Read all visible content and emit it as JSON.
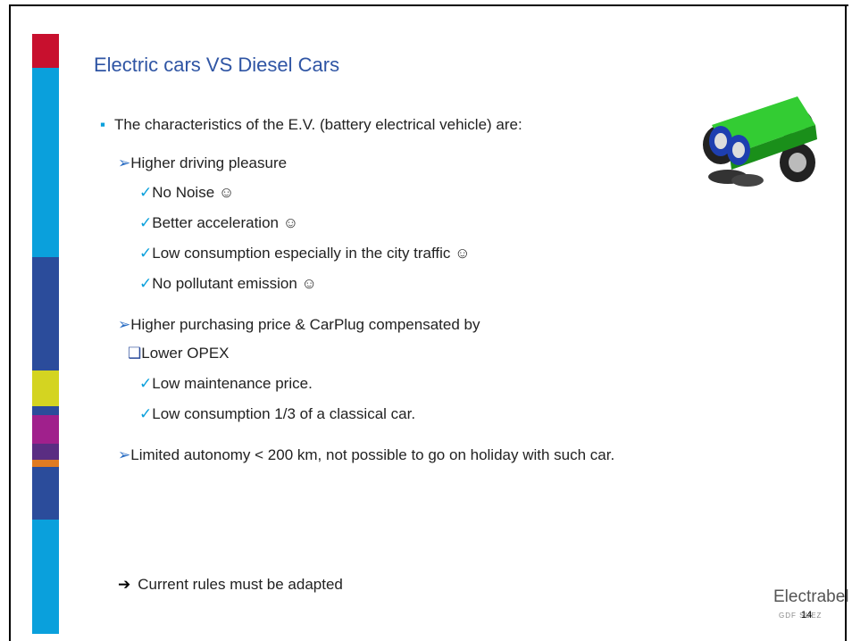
{
  "slide": {
    "title": "Electric cars VS Diesel Cars",
    "items": [
      {
        "marker": "▪",
        "text": "The characteristics of the E.V. (battery electrical vehicle) are:"
      },
      {
        "marker": "➢",
        "text": "Higher driving pleasure"
      },
      {
        "marker": "✓",
        "text": "No Noise ☺"
      },
      {
        "marker": "✓",
        "text": "Better acceleration ☺"
      },
      {
        "marker": "✓",
        "text": "Low consumption especially in the city traffic ☺"
      },
      {
        "marker": "✓",
        "text": "No pollutant emission ☺"
      },
      {
        "marker": "➢",
        "text": "Higher purchasing price & CarPlug compensated by"
      },
      {
        "marker": "❑",
        "text": "Lower OPEX"
      },
      {
        "marker": "✓",
        "text": "Low maintenance price."
      },
      {
        "marker": "✓",
        "text": "Low consumption 1/3 of a classical car."
      },
      {
        "marker": "➢",
        "text": "Limited autonomy < 200 km, not possible to go on holiday with such car."
      },
      {
        "marker": "➔",
        "text": "Current rules must be adapted"
      }
    ],
    "logo": {
      "brand": "Electrabel",
      "group": "GDF SUEZ"
    },
    "page_number": "14"
  }
}
